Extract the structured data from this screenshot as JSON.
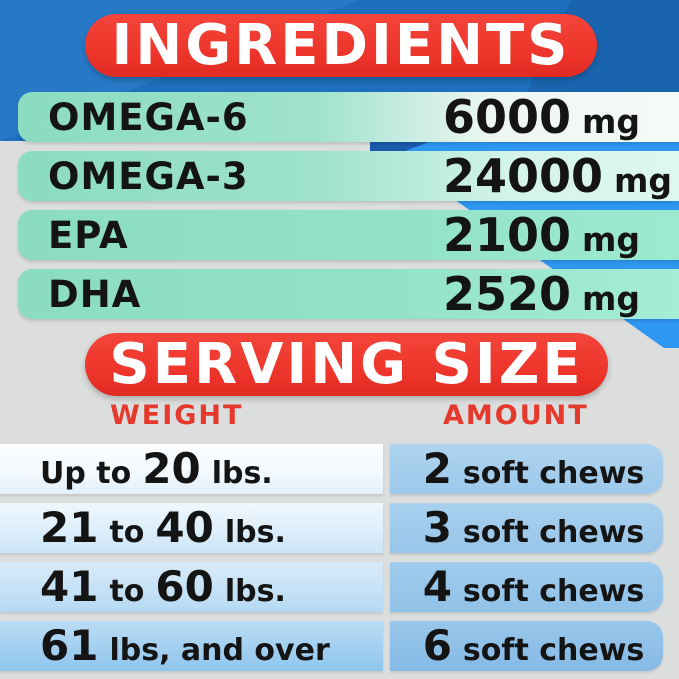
{
  "ingredients": {
    "title": "INGREDIENTS",
    "rows": [
      {
        "label": "OMEGA-6",
        "value": "6000",
        "unit": "mg"
      },
      {
        "label": "OMEGA-3",
        "value": "24000",
        "unit": "mg"
      },
      {
        "label": "EPA",
        "value": "2100",
        "unit": "mg"
      },
      {
        "label": "DHA",
        "value": "2520",
        "unit": "mg"
      }
    ]
  },
  "serving": {
    "title": "SERVING SIZE",
    "columns": {
      "weight": "WEIGHT",
      "amount": "AMOUNT"
    },
    "rows": [
      {
        "weight": [
          [
            "Up to",
            "sm"
          ],
          [
            "20",
            "lg"
          ],
          [
            "lbs.",
            "sm"
          ]
        ],
        "amount": [
          [
            "2",
            "lg"
          ],
          [
            "soft chews",
            "sm"
          ]
        ]
      },
      {
        "weight": [
          [
            "21",
            "lg"
          ],
          [
            "to",
            "sm"
          ],
          [
            "40",
            "lg"
          ],
          [
            "lbs.",
            "sm"
          ]
        ],
        "amount": [
          [
            "3",
            "lg"
          ],
          [
            "soft chews",
            "sm"
          ]
        ]
      },
      {
        "weight": [
          [
            "41",
            "lg"
          ],
          [
            "to",
            "sm"
          ],
          [
            "60",
            "lg"
          ],
          [
            "lbs.",
            "sm"
          ]
        ],
        "amount": [
          [
            "4",
            "lg"
          ],
          [
            "soft chews",
            "sm"
          ]
        ]
      },
      {
        "weight": [
          [
            "61",
            "lg"
          ],
          [
            "lbs, and over",
            "sm"
          ]
        ],
        "amount": [
          [
            "6",
            "lg"
          ],
          [
            "soft chews",
            "sm"
          ]
        ]
      }
    ]
  },
  "colors": {
    "banner_red": "#ee3a2f",
    "header_red": "#e6392d",
    "mint_green": "#8bdcc1",
    "deep_blue": "#1e6fbd",
    "bright_blue": "#2e97f2",
    "light_blue": "#a5cfee",
    "panel_grey": "#dcdddd",
    "text_black": "#141414"
  }
}
